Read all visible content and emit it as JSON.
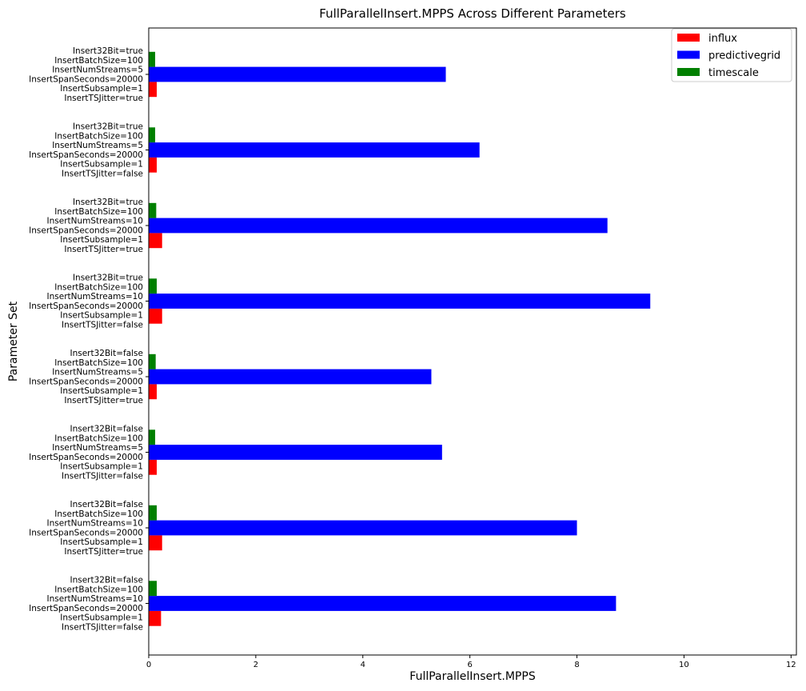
{
  "chart_data": {
    "type": "bar",
    "orientation": "horizontal",
    "title": "FullParallelInsert.MPPS Across Different Parameters",
    "xlabel": "FullParallelInsert.MPPS",
    "ylabel": "Parameter Set",
    "xlim": [
      0,
      12.1
    ],
    "xticks": [
      "0",
      "2",
      "4",
      "6",
      "8",
      "10",
      "12"
    ],
    "grid": false,
    "legend_position": "top-right",
    "categories": [
      [
        "Insert32Bit=true",
        "InsertBatchSize=100",
        "InsertNumStreams=5",
        "InsertSpanSeconds=20000",
        "InsertSubsample=1",
        "InsertTSJitter=true"
      ],
      [
        "Insert32Bit=true",
        "InsertBatchSize=100",
        "InsertNumStreams=5",
        "InsertSpanSeconds=20000",
        "InsertSubsample=1",
        "InsertTSJitter=false"
      ],
      [
        "Insert32Bit=true",
        "InsertBatchSize=100",
        "InsertNumStreams=10",
        "InsertSpanSeconds=20000",
        "InsertSubsample=1",
        "InsertTSJitter=true"
      ],
      [
        "Insert32Bit=true",
        "InsertBatchSize=100",
        "InsertNumStreams=10",
        "InsertSpanSeconds=20000",
        "InsertSubsample=1",
        "InsertTSJitter=false"
      ],
      [
        "Insert32Bit=false",
        "InsertBatchSize=100",
        "InsertNumStreams=5",
        "InsertSpanSeconds=20000",
        "InsertSubsample=1",
        "InsertTSJitter=true"
      ],
      [
        "Insert32Bit=false",
        "InsertBatchSize=100",
        "InsertNumStreams=5",
        "InsertSpanSeconds=20000",
        "InsertSubsample=1",
        "InsertTSJitter=false"
      ],
      [
        "Insert32Bit=false",
        "InsertBatchSize=100",
        "InsertNumStreams=10",
        "InsertSpanSeconds=20000",
        "InsertSubsample=1",
        "InsertTSJitter=true"
      ],
      [
        "Insert32Bit=false",
        "InsertBatchSize=100",
        "InsertNumStreams=10",
        "InsertSpanSeconds=20000",
        "InsertSubsample=1",
        "InsertTSJitter=false"
      ]
    ],
    "series": [
      {
        "name": "influx",
        "color": "#ff0000",
        "values": [
          0.15,
          0.15,
          0.25,
          0.25,
          0.15,
          0.15,
          0.25,
          0.23
        ]
      },
      {
        "name": "predictivegrid",
        "color": "#0000ff",
        "values": [
          5.55,
          6.18,
          8.57,
          9.37,
          5.28,
          5.48,
          8.0,
          8.73
        ]
      },
      {
        "name": "timescale",
        "color": "#008000",
        "values": [
          0.12,
          0.12,
          0.14,
          0.15,
          0.13,
          0.12,
          0.15,
          0.15
        ]
      }
    ]
  }
}
